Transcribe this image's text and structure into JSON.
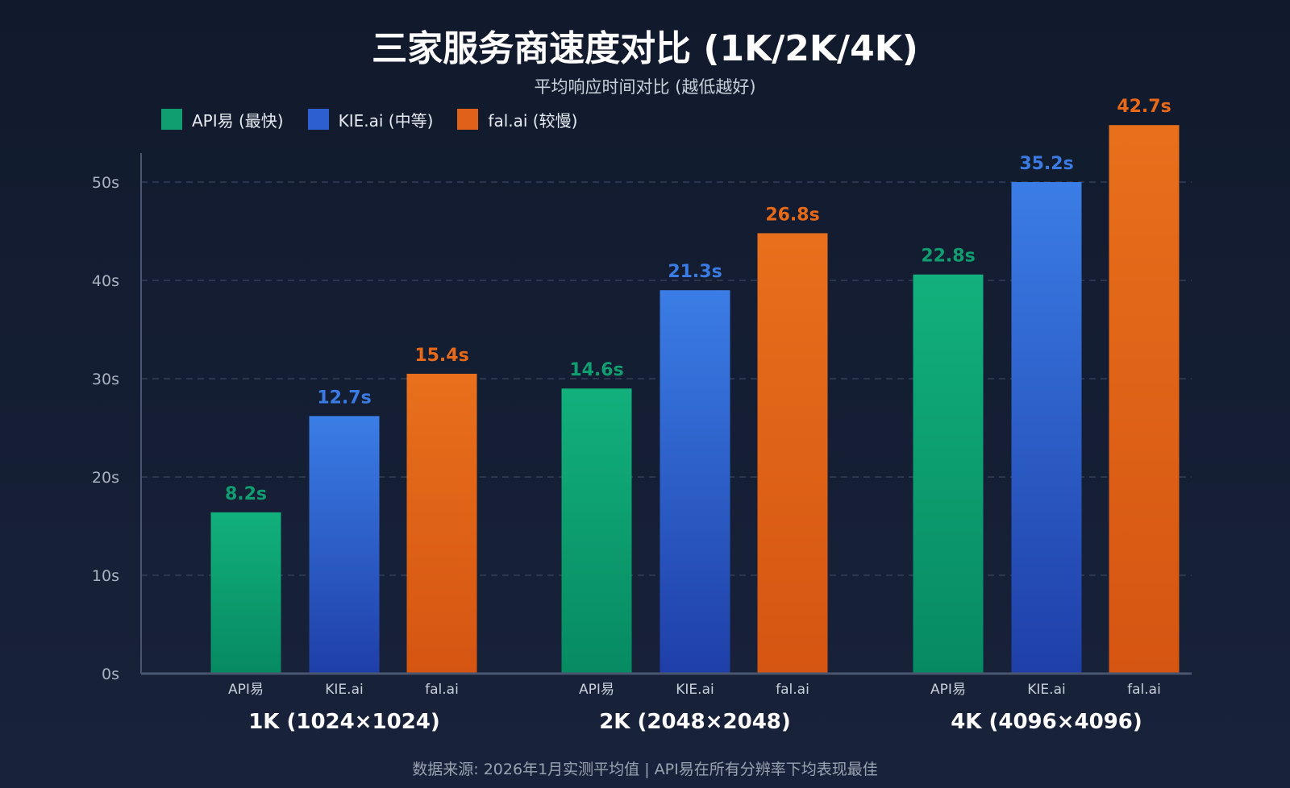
{
  "chart_data": {
    "type": "bar",
    "title": "三家服务商速度对比 (1K/2K/4K)",
    "subtitle": "平均响应时间对比 (越低越好)",
    "footer": "数据来源: 2026年1月实测平均值 | API易在所有分辨率下均表现最佳",
    "categories": [
      "1K (1024×1024)",
      "2K (2048×2048)",
      "4K (4096×4096)"
    ],
    "bar_labels": [
      "API易",
      "KIE.ai",
      "fal.ai"
    ],
    "ylim": [
      0,
      50
    ],
    "yticks": [
      "0s",
      "10s",
      "20s",
      "30s",
      "40s",
      "50s"
    ],
    "grid": true,
    "legend_placement": "top-left",
    "series": [
      {
        "name": "API易 (最快)",
        "color": "#0f9e70",
        "values": [
          8.2,
          14.6,
          22.8
        ],
        "value_labels": [
          "8.2s",
          "14.6s",
          "22.8s"
        ],
        "bar_values": [
          16.4,
          29.0,
          40.6
        ]
      },
      {
        "name": "KIE.ai (中等)",
        "color": "#3b7be4",
        "values": [
          12.7,
          21.3,
          35.2
        ],
        "value_labels": [
          "12.7s",
          "21.3s",
          "35.2s"
        ],
        "bar_values": [
          26.2,
          39.0,
          50.0
        ]
      },
      {
        "name": "fal.ai (较慢)",
        "color": "#e86a18",
        "values": [
          15.4,
          26.8,
          42.7
        ],
        "value_labels": [
          "15.4s",
          "26.8s",
          "42.7s"
        ],
        "bar_values": [
          30.5,
          44.8,
          55.8
        ]
      }
    ]
  }
}
